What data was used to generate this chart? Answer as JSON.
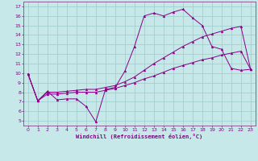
{
  "xlabel": "Windchill (Refroidissement éolien,°C)",
  "bg_color": "#c6e8e8",
  "line_color": "#880088",
  "grid_color": "#99cccc",
  "spine_color": "#884488",
  "xlim": [
    -0.5,
    23.5
  ],
  "ylim": [
    4.5,
    17.5
  ],
  "xticks": [
    0,
    1,
    2,
    3,
    4,
    5,
    6,
    7,
    8,
    9,
    10,
    11,
    12,
    13,
    14,
    15,
    16,
    17,
    18,
    19,
    20,
    21,
    22,
    23
  ],
  "yticks": [
    5,
    6,
    7,
    8,
    9,
    10,
    11,
    12,
    13,
    14,
    15,
    16,
    17
  ],
  "line1_x": [
    0,
    1,
    2,
    3,
    4,
    5,
    6,
    7,
    8,
    9,
    10,
    11,
    12,
    13,
    14,
    15,
    16,
    17,
    18,
    19,
    20,
    21,
    22,
    23
  ],
  "line1_y": [
    9.9,
    7.1,
    8.1,
    7.2,
    7.3,
    7.3,
    6.5,
    4.9,
    8.3,
    8.5,
    10.2,
    12.8,
    16.0,
    16.3,
    16.0,
    16.4,
    16.7,
    15.8,
    15.0,
    12.8,
    12.5,
    10.5,
    10.3,
    10.4
  ],
  "line2_x": [
    0,
    1,
    2,
    3,
    4,
    5,
    6,
    7,
    8,
    9,
    10,
    11,
    12,
    13,
    14,
    15,
    16,
    17,
    18,
    19,
    20,
    21,
    22,
    23
  ],
  "line2_y": [
    9.9,
    7.1,
    8.0,
    8.0,
    8.1,
    8.2,
    8.3,
    8.3,
    8.5,
    8.7,
    9.1,
    9.6,
    10.3,
    11.0,
    11.6,
    12.2,
    12.8,
    13.3,
    13.8,
    14.1,
    14.4,
    14.7,
    14.9,
    10.4
  ],
  "line3_x": [
    0,
    1,
    2,
    3,
    4,
    5,
    6,
    7,
    8,
    9,
    10,
    11,
    12,
    13,
    14,
    15,
    16,
    17,
    18,
    19,
    20,
    21,
    22,
    23
  ],
  "line3_y": [
    9.9,
    7.1,
    7.8,
    7.8,
    7.9,
    8.0,
    8.0,
    8.0,
    8.2,
    8.4,
    8.7,
    9.0,
    9.4,
    9.7,
    10.1,
    10.5,
    10.8,
    11.1,
    11.4,
    11.6,
    11.9,
    12.1,
    12.3,
    10.4
  ]
}
